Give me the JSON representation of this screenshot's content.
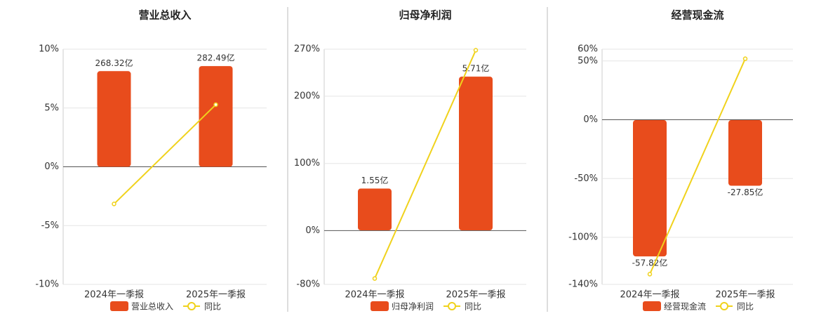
{
  "chart_data": [
    {
      "type": "bar",
      "title": "营业总收入",
      "categories": [
        "2024年一季报",
        "2025年一季报"
      ],
      "series": [
        {
          "name": "营业总收入",
          "color": "#e84c1c",
          "values": [
            268.32,
            282.49
          ],
          "value_labels": [
            "268.32亿",
            "282.49亿"
          ],
          "axis": "y2"
        },
        {
          "name": "同比",
          "color": "#f0d21c",
          "type": "line",
          "values": [
            -3.16,
            5.28
          ]
        }
      ],
      "ylim": [
        -10,
        10
      ],
      "yticks": [
        {
          "value": 10,
          "label": "10%"
        },
        {
          "value": 5,
          "label": "5%"
        },
        {
          "value": 0,
          "label": "0%"
        },
        {
          "value": -5,
          "label": "-5%"
        },
        {
          "value": -10,
          "label": "-10%"
        }
      ],
      "y2lim": [
        -330,
        330
      ],
      "grid": true
    },
    {
      "type": "bar",
      "title": "归母净利润",
      "categories": [
        "2024年一季报",
        "2025年一季报"
      ],
      "series": [
        {
          "name": "归母净利润",
          "color": "#e84c1c",
          "values": [
            1.55,
            5.71
          ],
          "value_labels": [
            "1.55亿",
            "5.71亿"
          ],
          "axis": "y2"
        },
        {
          "name": "同比",
          "color": "#f0d21c",
          "type": "line",
          "values": [
            -71.2,
            268.39
          ]
        }
      ],
      "ylim": [
        -80,
        270
      ],
      "yticks": [
        {
          "value": 270,
          "label": "270%"
        },
        {
          "value": 200,
          "label": "200%"
        },
        {
          "value": 100,
          "label": "100%"
        },
        {
          "value": 0,
          "label": "0%"
        },
        {
          "value": -80,
          "label": "-80%"
        }
      ],
      "y2lim": [
        -2.01,
        6.73
      ],
      "grid": true
    },
    {
      "type": "bar",
      "title": "经营现金流",
      "categories": [
        "2024年一季报",
        "2025年一季报"
      ],
      "series": [
        {
          "name": "经营现金流",
          "color": "#e84c1c",
          "values": [
            -57.82,
            -27.85
          ],
          "value_labels": [
            "-57.82亿",
            "-27.85亿"
          ],
          "axis": "y2"
        },
        {
          "name": "同比",
          "color": "#f0d21c",
          "type": "line",
          "values": [
            -131.3,
            51.83
          ]
        }
      ],
      "ylim": [
        -140,
        60
      ],
      "yticks": [
        {
          "value": 60,
          "label": "60%"
        },
        {
          "value": 50,
          "label": "50%"
        },
        {
          "value": 0,
          "label": "0%"
        },
        {
          "value": -50,
          "label": "-50%"
        },
        {
          "value": -100,
          "label": "-100%"
        },
        {
          "value": -140,
          "label": "-140%"
        }
      ],
      "y2lim": [
        -69.7,
        30.1
      ],
      "grid": true
    }
  ]
}
